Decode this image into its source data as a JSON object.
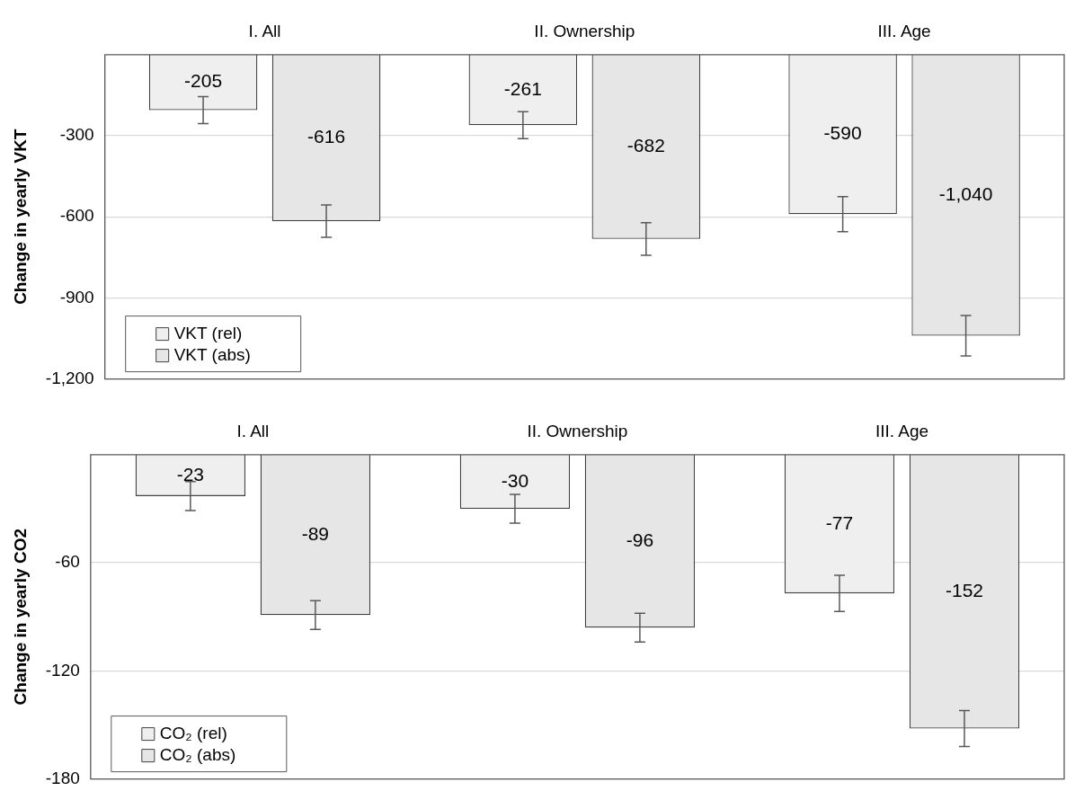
{
  "chart_data": [
    {
      "type": "bar",
      "categories": [
        "I. All",
        "II. Ownership",
        "III. Age"
      ],
      "ylabel": "Change in yearly VKT",
      "ylim": [
        -1200,
        0
      ],
      "yticks": [
        -300,
        -600,
        -900,
        {
          "value": -1200,
          "label": "-1,200"
        }
      ],
      "grid": "y",
      "legend": "bottom left",
      "series": [
        {
          "name": "VKT (rel)",
          "color": "#efefef",
          "values": [
            -205,
            -261,
            -590
          ],
          "errors": [
            50,
            50,
            65
          ],
          "value_labels": [
            "-205",
            "-261",
            "-590"
          ]
        },
        {
          "name": "VKT (abs)",
          "color": "#e6e6e6",
          "values": [
            -616,
            -682,
            -1040
          ],
          "errors": [
            60,
            60,
            75
          ],
          "value_labels": [
            "-616",
            "-682",
            "-1,040"
          ]
        }
      ]
    },
    {
      "type": "bar",
      "categories": [
        "I. All",
        "II. Ownership",
        "III. Age"
      ],
      "ylabel": "Change in yearly CO2",
      "ylim": [
        -180,
        0
      ],
      "yticks": [
        -60,
        -120,
        -180
      ],
      "grid": "y",
      "legend": "bottom left",
      "series": [
        {
          "name": "CO₂ (rel)",
          "color": "#efefef",
          "values": [
            -23,
            -30,
            -77
          ],
          "errors": [
            8,
            8,
            10
          ],
          "value_labels": [
            "-23",
            "-30",
            "-77"
          ]
        },
        {
          "name": "CO₂ (abs)",
          "color": "#e6e6e6",
          "values": [
            -89,
            -96,
            -152
          ],
          "errors": [
            8,
            8,
            10
          ],
          "value_labels": [
            "-89",
            "-96",
            "-152"
          ]
        }
      ]
    }
  ]
}
